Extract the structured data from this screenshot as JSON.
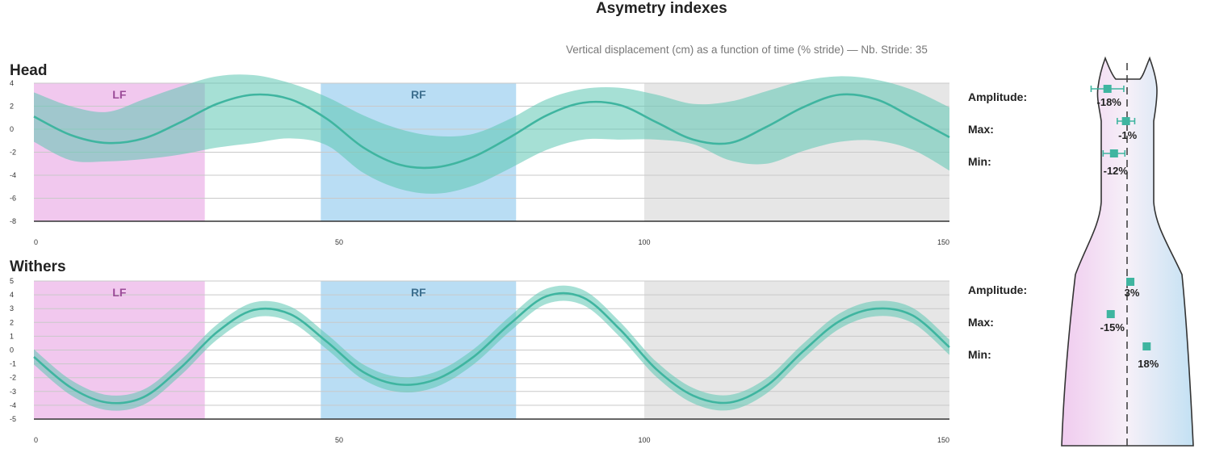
{
  "title": "Asymetry indexes",
  "subtitle": "Vertical displacement (cm) as a function of time (% stride) — Nb. Stride: 35",
  "colors": {
    "line": "#3fb5a0",
    "band": "#5cc7b2",
    "lf_zone": "#f1c8ee",
    "rf_zone": "#b9ddf4",
    "gray_zone": "#e6e6e6",
    "lf_text": "#9b4b98",
    "rf_text": "#3d6f8f"
  },
  "chart_data": [
    {
      "type": "line",
      "title": "Head",
      "xlim": [
        0,
        150
      ],
      "ylim": [
        -8,
        4
      ],
      "x_ticks": [
        0,
        50,
        100,
        150
      ],
      "y_ticks": [
        4,
        2,
        0,
        -2,
        -4,
        -6,
        -8
      ],
      "zones": [
        {
          "label": "LF",
          "x0": 0,
          "x1": 28,
          "kind": "lf"
        },
        {
          "label": "RF",
          "x0": 47,
          "x1": 79,
          "kind": "rf"
        },
        {
          "label": "",
          "x0": 100,
          "x1": 150,
          "kind": "gray"
        }
      ],
      "series": [
        {
          "name": "mean",
          "x": [
            0,
            6,
            12,
            18,
            24,
            30,
            36,
            42,
            48,
            54,
            60,
            66,
            72,
            78,
            84,
            90,
            96,
            102,
            108,
            114,
            120,
            126,
            132,
            138,
            144,
            150
          ],
          "y": [
            1.1,
            -0.5,
            -1.2,
            -0.8,
            0.6,
            2.2,
            3.0,
            2.6,
            0.9,
            -1.6,
            -3.1,
            -3.3,
            -2.4,
            -0.7,
            1.2,
            2.3,
            2.1,
            0.6,
            -0.9,
            -1.2,
            0.2,
            1.9,
            3.0,
            2.6,
            1.0,
            -0.7
          ],
          "upper": [
            3.2,
            2.0,
            1.5,
            2.6,
            3.7,
            4.6,
            4.7,
            4.0,
            2.8,
            1.2,
            0.0,
            -0.6,
            -0.4,
            0.9,
            2.6,
            3.5,
            3.6,
            3.0,
            2.2,
            2.4,
            3.3,
            4.2,
            4.6,
            4.3,
            3.4,
            1.9
          ],
          "lower": [
            -1.1,
            -2.7,
            -2.8,
            -2.6,
            -2.2,
            -1.6,
            -1.2,
            -0.8,
            -1.4,
            -3.8,
            -5.2,
            -5.6,
            -4.9,
            -3.4,
            -1.8,
            -0.9,
            -0.9,
            -0.9,
            -1.3,
            -2.7,
            -3.0,
            -1.9,
            -1.1,
            -1.0,
            -1.8,
            -3.6
          ]
        }
      ]
    },
    {
      "type": "line",
      "title": "Withers",
      "xlim": [
        0,
        150
      ],
      "ylim": [
        -5,
        5
      ],
      "x_ticks": [
        0,
        50,
        100,
        150
      ],
      "y_ticks": [
        5,
        4,
        3,
        2,
        1,
        0,
        -1,
        -2,
        -3,
        -4,
        -5
      ],
      "zones": [
        {
          "label": "LF",
          "x0": 0,
          "x1": 28,
          "kind": "lf"
        },
        {
          "label": "RF",
          "x0": 47,
          "x1": 79,
          "kind": "rf"
        },
        {
          "label": "",
          "x0": 100,
          "x1": 150,
          "kind": "gray"
        }
      ],
      "series": [
        {
          "name": "mean",
          "x": [
            0,
            6,
            12,
            18,
            24,
            30,
            36,
            42,
            48,
            54,
            60,
            66,
            72,
            78,
            84,
            90,
            96,
            102,
            108,
            114,
            120,
            126,
            132,
            138,
            144,
            150
          ],
          "y": [
            -0.5,
            -2.7,
            -3.8,
            -3.4,
            -1.3,
            1.3,
            2.9,
            2.6,
            0.6,
            -1.6,
            -2.5,
            -2.1,
            -0.5,
            1.9,
            3.9,
            3.8,
            1.5,
            -1.4,
            -3.3,
            -3.8,
            -2.6,
            -0.1,
            2.1,
            3.0,
            2.5,
            0.2
          ]
        }
      ],
      "band_half_width": 0.55
    }
  ],
  "asymmetry": {
    "head": {
      "amplitude": {
        "label": "Amplitude:",
        "value": "-18%",
        "center": -18,
        "err": 15
      },
      "max": {
        "label": "Max:",
        "value": "-1%",
        "center": -1,
        "err": 8
      },
      "min": {
        "label": "Min:",
        "value": "-12%",
        "center": -12,
        "err": 10
      }
    },
    "withers": {
      "amplitude": {
        "label": "Amplitude:",
        "value": "3%",
        "center": 3,
        "err": 3
      },
      "max": {
        "label": "Max:",
        "value": "-15%",
        "center": -15,
        "err": 2
      },
      "min": {
        "label": "Min:",
        "value": "18%",
        "center": 18,
        "err": 2
      }
    }
  }
}
